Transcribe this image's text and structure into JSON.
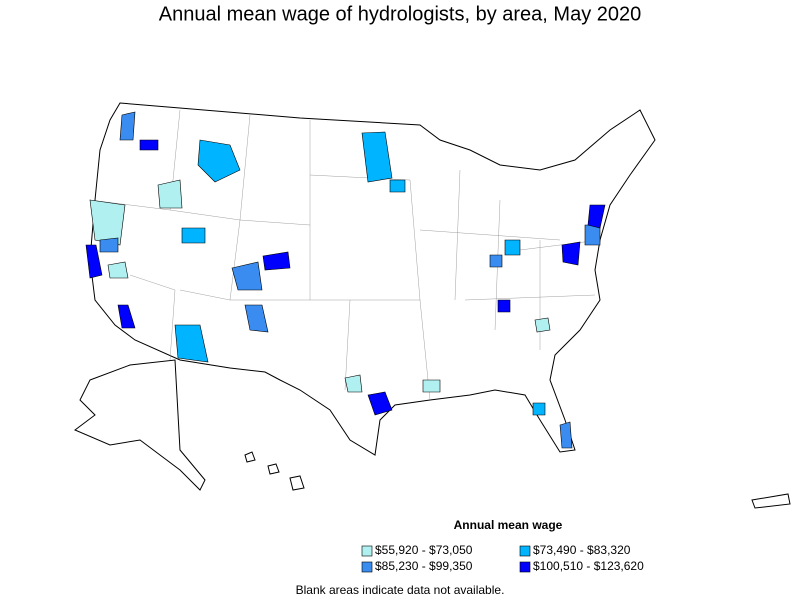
{
  "title": "Annual mean wage of hydrologists, by area, May 2020",
  "legend": {
    "title": "Annual mean wage",
    "items": [
      {
        "label": "$55,920 - $73,050",
        "color": "#b0f0f0"
      },
      {
        "label": "$73,490 - $83,320",
        "color": "#00b4ff"
      },
      {
        "label": "$85,230 - $99,350",
        "color": "#3a8cf0"
      },
      {
        "label": "$100,510 - $123,620",
        "color": "#0000ff"
      }
    ]
  },
  "note": "Blank areas indicate data not available."
}
